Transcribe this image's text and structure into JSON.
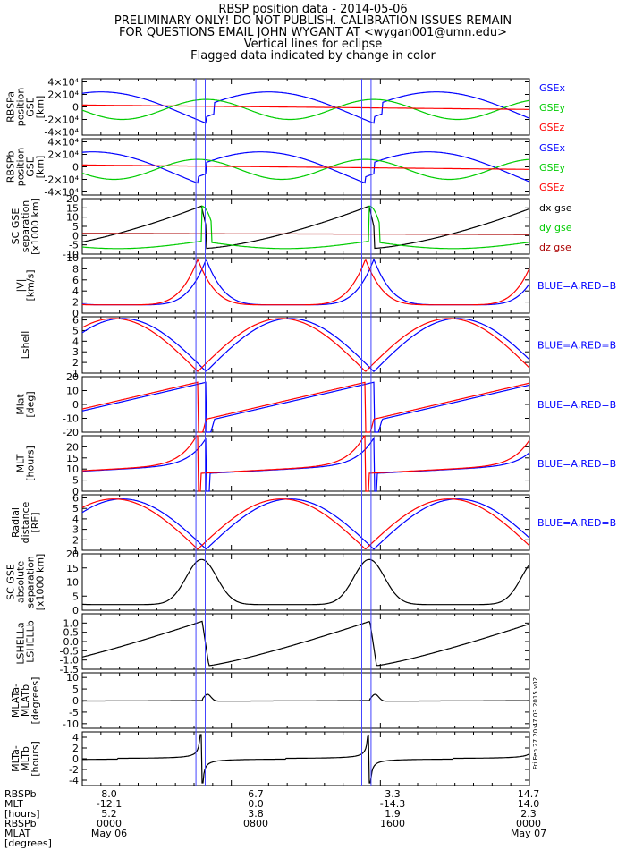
{
  "header": {
    "title": "RBSP position data - 2014-05-06",
    "line2": "PRELIMINARY ONLY! DO NOT PUBLISH. CALIBRATION ISSUES REMAIN",
    "line3": "FOR QUESTIONS EMAIL JOHN WYGANT AT <wygan001@umn.edu>",
    "line4": "Vertical lines for eclipse",
    "line5": "Flagged data indicated by change in color"
  },
  "colors": {
    "blue": "#0000ff",
    "red": "#ff0000",
    "green": "#00cc00",
    "black": "#000000",
    "darkred": "#aa0000",
    "eclipse": "#4444ff"
  },
  "chart_data": [
    {
      "type": "line",
      "ylabel": [
        "RBSPa",
        "position",
        "GSE",
        "[km]"
      ],
      "ylim": [
        -45000,
        45000
      ],
      "ytick_labels": [
        "4×10⁴",
        "2×10⁴",
        "0",
        "-2×10⁴",
        "-4×10⁴"
      ],
      "series": [
        {
          "name": "GSEx",
          "color": "blue"
        },
        {
          "name": "GSEy",
          "color": "green"
        },
        {
          "name": "GSEz",
          "color": "red"
        }
      ]
    },
    {
      "type": "line",
      "ylabel": [
        "RBSPb",
        "position",
        "GSE",
        "[km]"
      ],
      "ylim": [
        -45000,
        45000
      ],
      "ytick_labels": [
        "4×10⁴",
        "2×10⁴",
        "0",
        "-2×10⁴",
        "-4×10⁴"
      ],
      "series": [
        {
          "name": "GSEx",
          "color": "blue"
        },
        {
          "name": "GSEy",
          "color": "green"
        },
        {
          "name": "GSEz",
          "color": "red"
        }
      ]
    },
    {
      "type": "line",
      "ylabel": [
        "SC GSE",
        "separation",
        "[x1000 km]"
      ],
      "ylim": [
        -10,
        20
      ],
      "ytick_labels": [
        "20",
        "15",
        "10",
        "5",
        "0",
        "-5",
        "-10"
      ],
      "series": [
        {
          "name": "dx gse",
          "color": "black"
        },
        {
          "name": "dy gse",
          "color": "green"
        },
        {
          "name": "dz gse",
          "color": "darkred"
        }
      ]
    },
    {
      "type": "line",
      "ylabel": [
        "|V|",
        "[km/s]"
      ],
      "ylim": [
        0,
        10
      ],
      "ytick_labels": [
        "10",
        "8",
        "6",
        "4",
        "2",
        "0"
      ],
      "series": [
        {
          "name": "A",
          "color": "blue"
        },
        {
          "name": "B",
          "color": "red"
        }
      ],
      "legend": "BLUE=A,RED=B"
    },
    {
      "type": "line",
      "ylabel": [
        "Lshell"
      ],
      "ylim": [
        1,
        6.3
      ],
      "ytick_labels": [
        "6",
        "5",
        "4",
        "3",
        "2",
        "1"
      ],
      "series": [
        {
          "name": "A",
          "color": "blue"
        },
        {
          "name": "B",
          "color": "red"
        }
      ],
      "legend": "BLUE=A,RED=B"
    },
    {
      "type": "line",
      "ylabel": [
        "Mlat",
        "[deg]"
      ],
      "ylim": [
        -20,
        20
      ],
      "ytick_labels": [
        "20",
        "10",
        "0",
        "-10",
        "-20"
      ],
      "series": [
        {
          "name": "A",
          "color": "blue"
        },
        {
          "name": "B",
          "color": "red"
        }
      ],
      "legend": "BLUE=A,RED=B"
    },
    {
      "type": "line",
      "ylabel": [
        "MLT",
        "[hours]"
      ],
      "ylim": [
        0,
        25
      ],
      "ytick_labels": [
        "20",
        "15",
        "10",
        "5",
        "0"
      ],
      "series": [
        {
          "name": "A",
          "color": "blue"
        },
        {
          "name": "B",
          "color": "red"
        }
      ],
      "legend": "BLUE=A,RED=B"
    },
    {
      "type": "line",
      "ylabel": [
        "Radial",
        "distance",
        "[RE]"
      ],
      "ylim": [
        1,
        6.3
      ],
      "ytick_labels": [
        "6",
        "5",
        "4",
        "3",
        "2",
        "1"
      ],
      "series": [
        {
          "name": "A",
          "color": "blue"
        },
        {
          "name": "B",
          "color": "red"
        }
      ],
      "legend": "BLUE=A,RED=B"
    },
    {
      "type": "line",
      "ylabel": [
        "SC GSE",
        "absolute",
        "separation",
        "[x1000 km]"
      ],
      "ylim": [
        0,
        20
      ],
      "ytick_labels": [
        "20",
        "15",
        "10",
        "5",
        "0"
      ],
      "series": [
        {
          "name": "",
          "color": "black"
        }
      ]
    },
    {
      "type": "line",
      "ylabel": [
        "LSHELLa-",
        "LSHELLb"
      ],
      "ylim": [
        -1.5,
        1.5
      ],
      "ytick_labels": [
        "1.0",
        "0.5",
        "0.0",
        "-0.5",
        "-1.0",
        "-1.5"
      ],
      "series": [
        {
          "name": "",
          "color": "black"
        }
      ]
    },
    {
      "type": "line",
      "ylabel": [
        "MLATa-",
        "MLATb",
        "[degrees]"
      ],
      "ylim": [
        -12,
        12
      ],
      "ytick_labels": [
        "10",
        "5",
        "0",
        "-5",
        "-10"
      ],
      "series": [
        {
          "name": "",
          "color": "black"
        }
      ]
    },
    {
      "type": "line",
      "ylabel": [
        "MLTa-",
        "MLTb",
        "[hours]"
      ],
      "ylim": [
        -5,
        5
      ],
      "ytick_labels": [
        "4",
        "2",
        "0",
        "-2",
        "-4"
      ],
      "series": [
        {
          "name": "",
          "color": "black"
        }
      ]
    }
  ],
  "eclipse_hours": [
    6.1,
    6.6,
    15.0,
    15.5
  ],
  "stamp": "Fri Feb 27 20:47:03 2015 v02",
  "footer": {
    "row_labels": [
      "RBSPb",
      "MLT",
      "[hours]",
      "RBSPb",
      "MLAT",
      "[degrees]"
    ],
    "columns": [
      {
        "values": [
          "8.0",
          "-12.1",
          "5.2",
          "0000",
          "May 06"
        ]
      },
      {
        "values": [
          "6.7",
          "0.0",
          "3.8",
          "0800",
          ""
        ]
      },
      {
        "values": [
          "3.3",
          "-14.3",
          "1.9",
          "1600",
          ""
        ]
      },
      {
        "values": [
          "14.7",
          "14.0",
          "2.3",
          "0000",
          "May 07"
        ]
      }
    ]
  }
}
